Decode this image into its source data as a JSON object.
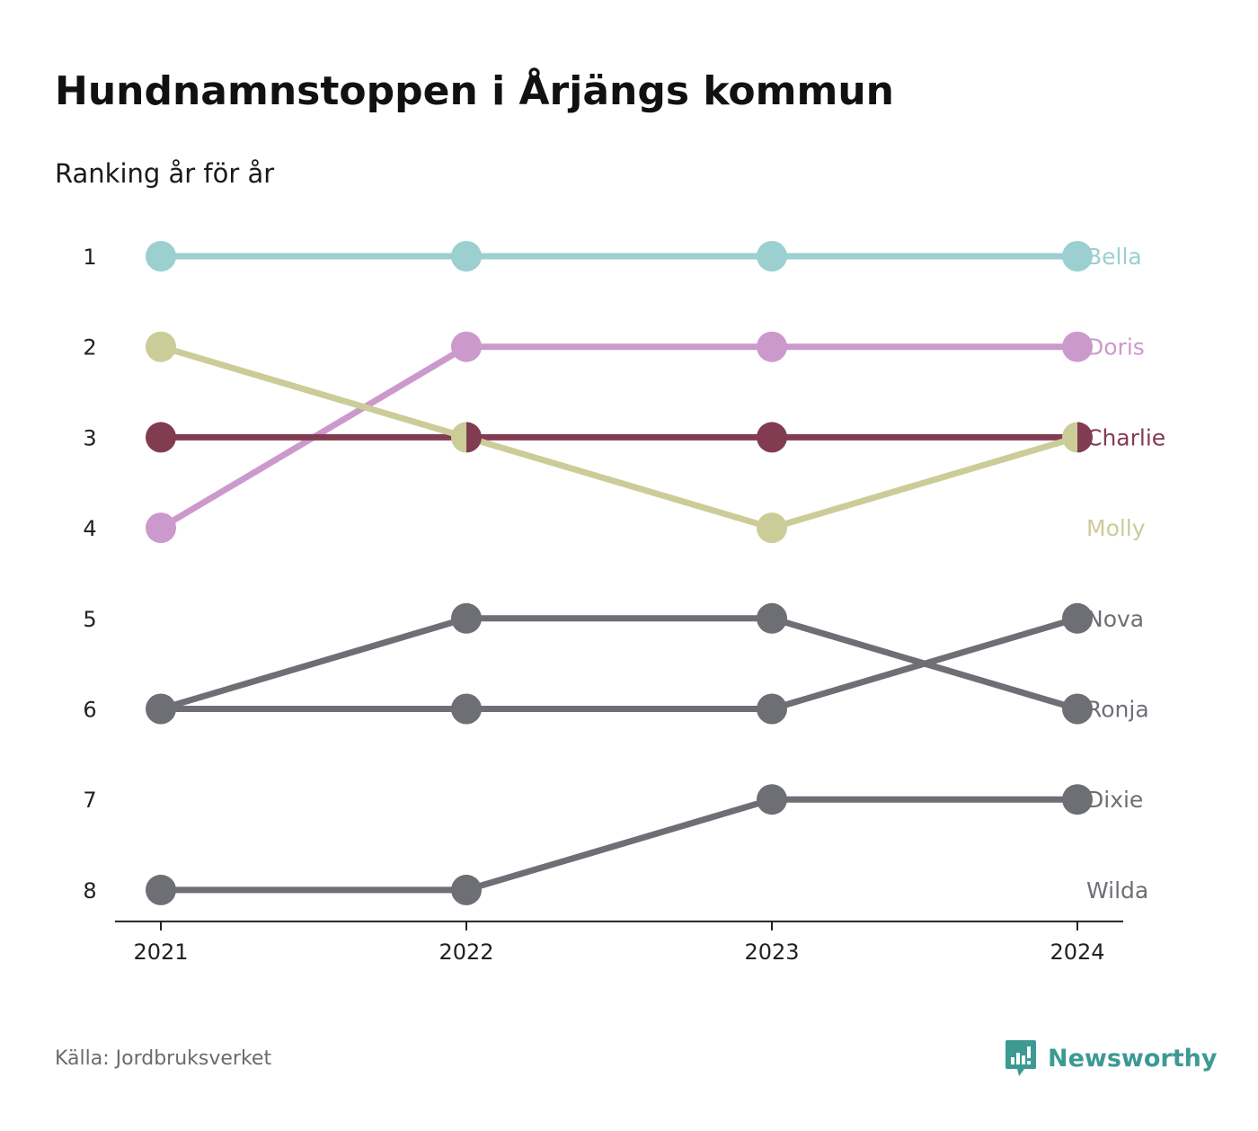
{
  "header": {
    "title": "Hundnamnstoppen i Årjängs kommun",
    "subtitle": "Ranking år för år"
  },
  "footer": {
    "source": "Källa: Jordbruksverket",
    "brand_name": "Newsworthy",
    "brand_icon": "newsworthy-logo-icon",
    "brand_color": "#3d9a93"
  },
  "chart_data": {
    "type": "line",
    "x": [
      "2021",
      "2022",
      "2023",
      "2024"
    ],
    "y_ticks": [
      1,
      2,
      3,
      4,
      5,
      6,
      7,
      8
    ],
    "y_reversed": true,
    "ylim": [
      1,
      8
    ],
    "grid": false,
    "series": [
      {
        "name": "Bella",
        "color": "#9bcfd0",
        "values": [
          1,
          1,
          1,
          1
        ]
      },
      {
        "name": "Doris",
        "color": "#cc99cc",
        "values": [
          4,
          2,
          2,
          2
        ]
      },
      {
        "name": "Charlie",
        "color": "#823c52",
        "values": [
          3,
          3,
          3,
          3
        ]
      },
      {
        "name": "Molly",
        "color": "#cccc99",
        "values": [
          2,
          3,
          4,
          3
        ]
      },
      {
        "name": "Nova",
        "color": "#6e6e75",
        "values": [
          6,
          6,
          6,
          5
        ]
      },
      {
        "name": "Ronja",
        "color": "#6e6e75",
        "values": [
          6,
          5,
          5,
          6
        ]
      },
      {
        "name": "Dixie",
        "color": "#6e6e75",
        "values": [
          8,
          8,
          7,
          7
        ]
      },
      {
        "name": "Wilda",
        "color": "#6e6e75",
        "values": [
          null,
          null,
          null,
          null
        ]
      }
    ]
  }
}
